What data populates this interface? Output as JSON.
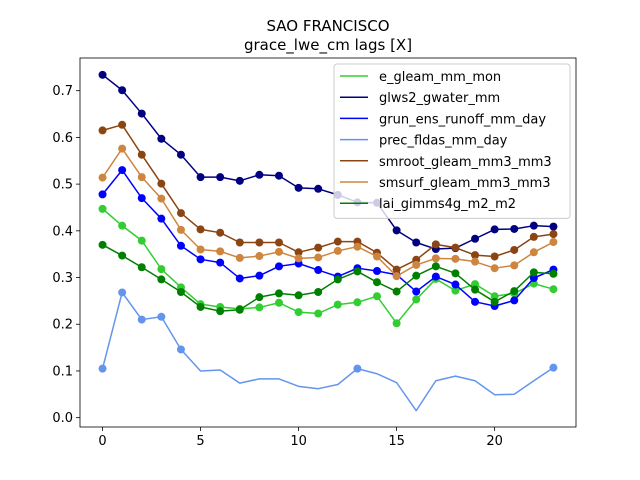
{
  "chart_data": {
    "type": "line",
    "title": "SAO FRANCISCO",
    "subtitle": "grace_lwe_cm lags [X]",
    "xlabel": "",
    "ylabel": "",
    "xlim": [
      -1.15,
      24.15
    ],
    "ylim": [
      -0.02,
      0.77
    ],
    "xticks": [
      0,
      5,
      10,
      15,
      20
    ],
    "yticks": [
      0.0,
      0.1,
      0.2,
      0.3,
      0.4,
      0.5,
      0.6,
      0.7
    ],
    "ytick_labels": [
      "0.0",
      "0.1",
      "0.2",
      "0.3",
      "0.4",
      "0.5",
      "0.6",
      "0.7"
    ],
    "legend_position": "top-right",
    "grid": false,
    "x": [
      0,
      1,
      2,
      3,
      4,
      5,
      6,
      7,
      8,
      9,
      10,
      11,
      12,
      13,
      14,
      15,
      16,
      17,
      18,
      19,
      20,
      21,
      22,
      23
    ],
    "series": [
      {
        "name": "e_gleam_mm_mon",
        "color": "#32cd32",
        "marked": [
          0,
          1,
          2,
          3,
          4,
          5,
          6,
          7,
          8,
          9,
          10,
          11,
          12,
          13,
          14,
          15,
          16,
          17,
          18,
          19,
          20,
          21,
          22,
          23
        ],
        "values": [
          0.447,
          0.411,
          0.379,
          0.318,
          0.279,
          0.243,
          0.237,
          0.233,
          0.236,
          0.246,
          0.226,
          0.223,
          0.242,
          0.247,
          0.26,
          0.202,
          0.253,
          0.297,
          0.272,
          0.286,
          0.26,
          0.266,
          0.287,
          0.275
        ]
      },
      {
        "name": "glws2_gwater_mm",
        "color": "#000080",
        "marked": [
          0,
          1,
          2,
          3,
          4,
          5,
          6,
          7,
          8,
          9,
          10,
          11,
          12,
          13,
          14,
          15,
          16,
          17,
          18,
          19,
          20,
          21,
          22,
          23
        ],
        "values": [
          0.734,
          0.701,
          0.651,
          0.597,
          0.563,
          0.515,
          0.515,
          0.507,
          0.52,
          0.518,
          0.492,
          0.49,
          0.477,
          0.461,
          0.46,
          0.401,
          0.375,
          0.361,
          0.363,
          0.383,
          0.403,
          0.404,
          0.411,
          0.409
        ]
      },
      {
        "name": "grun_ens_runoff_mm_day",
        "color": "#0000ff",
        "marked": [
          0,
          1,
          2,
          3,
          4,
          5,
          6,
          7,
          8,
          9,
          10,
          11,
          12,
          13,
          14,
          15,
          16,
          17,
          18,
          19,
          20,
          21,
          22,
          23
        ],
        "values": [
          0.478,
          0.53,
          0.47,
          0.426,
          0.368,
          0.339,
          0.332,
          0.298,
          0.304,
          0.324,
          0.33,
          0.316,
          0.302,
          0.32,
          0.314,
          0.306,
          0.27,
          0.302,
          0.285,
          0.248,
          0.239,
          0.251,
          0.299,
          0.317
        ]
      },
      {
        "name": "prec_fldas_mm_day",
        "color": "#6495ed",
        "marked": [
          0,
          1,
          2,
          3,
          4,
          13,
          23
        ],
        "values": [
          0.105,
          0.268,
          0.21,
          0.216,
          0.146,
          0.1,
          0.102,
          0.074,
          0.083,
          0.083,
          0.067,
          0.062,
          0.071,
          0.105,
          0.094,
          0.075,
          0.015,
          0.079,
          0.089,
          0.079,
          0.049,
          0.05,
          0.079,
          0.107
        ]
      },
      {
        "name": "smroot_gleam_mm3_mm3",
        "color": "#8b4513",
        "marked": [
          0,
          1,
          2,
          3,
          4,
          5,
          6,
          7,
          8,
          9,
          10,
          11,
          12,
          13,
          14,
          15,
          16,
          17,
          18,
          19,
          20,
          21,
          22,
          23
        ],
        "values": [
          0.615,
          0.627,
          0.563,
          0.501,
          0.438,
          0.403,
          0.396,
          0.375,
          0.375,
          0.375,
          0.354,
          0.364,
          0.377,
          0.377,
          0.353,
          0.317,
          0.338,
          0.371,
          0.364,
          0.348,
          0.345,
          0.359,
          0.387,
          0.393
        ]
      },
      {
        "name": "smsurf_gleam_mm3_mm3",
        "color": "#cd853f",
        "marked": [
          0,
          1,
          2,
          3,
          4,
          5,
          6,
          7,
          8,
          9,
          10,
          11,
          12,
          13,
          14,
          15,
          16,
          17,
          18,
          19,
          20,
          21,
          22,
          23
        ],
        "values": [
          0.514,
          0.576,
          0.515,
          0.469,
          0.402,
          0.36,
          0.356,
          0.342,
          0.346,
          0.355,
          0.341,
          0.343,
          0.357,
          0.366,
          0.345,
          0.303,
          0.327,
          0.341,
          0.34,
          0.334,
          0.32,
          0.326,
          0.354,
          0.376
        ]
      },
      {
        "name": "lai_gimms4g_m2_m2",
        "color": "#008000",
        "marked": [
          0,
          1,
          2,
          3,
          4,
          5,
          6,
          7,
          8,
          9,
          10,
          11,
          12,
          13,
          14,
          15,
          16,
          17,
          18,
          19,
          20,
          21,
          22,
          23
        ],
        "values": [
          0.37,
          0.347,
          0.322,
          0.296,
          0.269,
          0.237,
          0.228,
          0.231,
          0.258,
          0.266,
          0.262,
          0.269,
          0.296,
          0.313,
          0.29,
          0.27,
          0.304,
          0.324,
          0.309,
          0.274,
          0.248,
          0.271,
          0.311,
          0.308
        ]
      }
    ]
  }
}
